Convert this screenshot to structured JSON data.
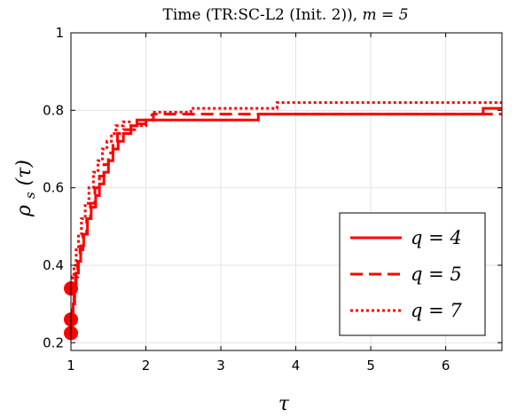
{
  "chart_data": {
    "type": "line",
    "title": "Time (TR:SC-L2 (Init. 2)), m = 5",
    "title_parts": {
      "prefix": "Time (TR:SC-L2 (Init. 2)),",
      "math": "m = 5"
    },
    "xlabel": "τ",
    "ylabel": "ρs(τ)",
    "ylabel_parts": {
      "rho": "ρ",
      "sub": "s",
      "arg": "(τ)"
    },
    "xlim": [
      1,
      6.75
    ],
    "ylim": [
      0.18,
      1.0
    ],
    "xticks": [
      1,
      2,
      3,
      4,
      5,
      6
    ],
    "yticks": [
      0.2,
      0.4,
      0.6,
      0.8,
      1
    ],
    "xtick_labels": [
      "1",
      "2",
      "3",
      "4",
      "5",
      "6"
    ],
    "ytick_labels": [
      "0.2",
      "0.4",
      "0.6",
      "0.8",
      "1"
    ],
    "grid": true,
    "legend_position": "bottom-right",
    "color": "#ff0000",
    "series": [
      {
        "name": "q = 4",
        "legend_label": {
          "math": "q = 4"
        },
        "style": "solid",
        "start_marker": 0.225,
        "points": [
          [
            1.0,
            0.225
          ],
          [
            1.02,
            0.26
          ],
          [
            1.03,
            0.3
          ],
          [
            1.05,
            0.34
          ],
          [
            1.07,
            0.38
          ],
          [
            1.1,
            0.41
          ],
          [
            1.13,
            0.45
          ],
          [
            1.17,
            0.48
          ],
          [
            1.22,
            0.52
          ],
          [
            1.27,
            0.55
          ],
          [
            1.33,
            0.58
          ],
          [
            1.38,
            0.61
          ],
          [
            1.44,
            0.64
          ],
          [
            1.5,
            0.67
          ],
          [
            1.56,
            0.7
          ],
          [
            1.63,
            0.72
          ],
          [
            1.7,
            0.74
          ],
          [
            1.8,
            0.76
          ],
          [
            1.88,
            0.775
          ],
          [
            2.5,
            0.775
          ],
          [
            3.5,
            0.775
          ],
          [
            3.5,
            0.79
          ],
          [
            6.5,
            0.79
          ],
          [
            6.5,
            0.805
          ],
          [
            6.75,
            0.805
          ]
        ]
      },
      {
        "name": "q = 5",
        "legend_label": {
          "math": "q = 5"
        },
        "style": "dashed",
        "start_marker": 0.26,
        "points": [
          [
            1.0,
            0.26
          ],
          [
            1.02,
            0.29
          ],
          [
            1.04,
            0.33
          ],
          [
            1.06,
            0.37
          ],
          [
            1.09,
            0.41
          ],
          [
            1.12,
            0.44
          ],
          [
            1.16,
            0.48
          ],
          [
            1.21,
            0.52
          ],
          [
            1.26,
            0.56
          ],
          [
            1.32,
            0.6
          ],
          [
            1.38,
            0.63
          ],
          [
            1.44,
            0.66
          ],
          [
            1.5,
            0.69
          ],
          [
            1.56,
            0.72
          ],
          [
            1.62,
            0.74
          ],
          [
            1.7,
            0.75
          ],
          [
            1.85,
            0.765
          ],
          [
            2.0,
            0.775
          ],
          [
            2.1,
            0.79
          ],
          [
            6.75,
            0.79
          ]
        ]
      },
      {
        "name": "q = 7",
        "legend_label": {
          "math": "q = 7"
        },
        "style": "dotted",
        "start_marker": 0.34,
        "points": [
          [
            1.0,
            0.34
          ],
          [
            1.02,
            0.37
          ],
          [
            1.04,
            0.4
          ],
          [
            1.07,
            0.44
          ],
          [
            1.1,
            0.48
          ],
          [
            1.14,
            0.52
          ],
          [
            1.19,
            0.56
          ],
          [
            1.24,
            0.6
          ],
          [
            1.3,
            0.64
          ],
          [
            1.36,
            0.67
          ],
          [
            1.42,
            0.7
          ],
          [
            1.48,
            0.72
          ],
          [
            1.54,
            0.74
          ],
          [
            1.6,
            0.76
          ],
          [
            1.7,
            0.77
          ],
          [
            1.8,
            0.76
          ],
          [
            2.0,
            0.775
          ],
          [
            2.08,
            0.795
          ],
          [
            2.6,
            0.805
          ],
          [
            3.7,
            0.805
          ],
          [
            3.75,
            0.82
          ],
          [
            6.75,
            0.82
          ]
        ]
      }
    ]
  }
}
